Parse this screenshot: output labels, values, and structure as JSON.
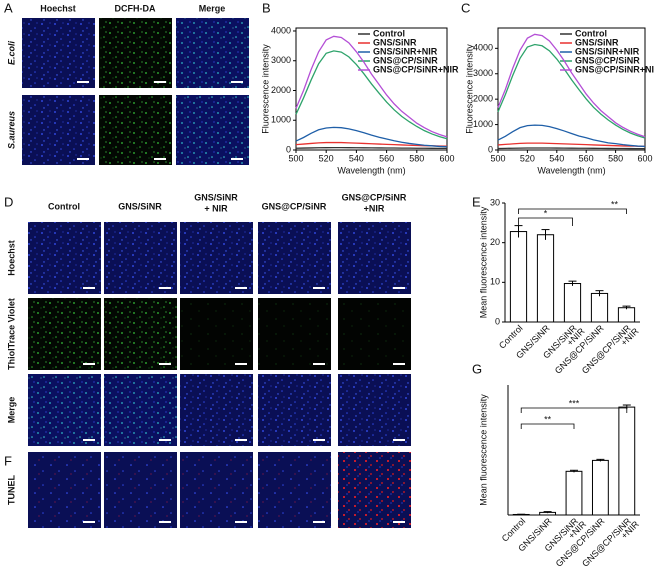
{
  "panel_labels": [
    "A",
    "B",
    "C",
    "D",
    "E",
    "F",
    "G"
  ],
  "panel_a": {
    "columns": [
      "Hoechst",
      "DCFH-DA",
      "Merge"
    ],
    "rows": [
      "E.coli",
      "S.aureus"
    ]
  },
  "panel_d": {
    "columns": [
      {
        "text": "Control"
      },
      {
        "text": "GNS/SiNR"
      },
      {
        "text": "GNS/SiNR",
        "suffix": "+ NIR"
      },
      {
        "text": "GNS@CP/SiNR"
      },
      {
        "text": "GNS@CP/SiNR",
        "suffix": "+NIR"
      }
    ],
    "rows": [
      "Hoechst",
      "ThiolTrace Violet",
      "Merge"
    ]
  },
  "panel_f": {
    "row": "TUNEL"
  },
  "chart_data": [
    {
      "type": "line",
      "xlabel": "Wavelength (nm)",
      "ylabel": "Fluorescence intensity",
      "x": [
        500,
        505,
        510,
        515,
        520,
        525,
        530,
        535,
        540,
        545,
        550,
        555,
        560,
        565,
        570,
        575,
        580,
        585,
        590,
        595,
        600
      ],
      "xlim": [
        500,
        600
      ],
      "xticks": [
        500,
        520,
        540,
        560,
        580,
        600
      ],
      "ylim": [
        0,
        4100
      ],
      "yticks": [
        0,
        1000,
        2000,
        3000,
        4000
      ],
      "series": [
        {
          "name": "Control",
          "color": "#333333",
          "values": [
            60,
            65,
            70,
            75,
            78,
            80,
            80,
            78,
            76,
            74,
            72,
            70,
            68,
            66,
            64,
            62,
            60,
            58,
            56,
            55,
            54
          ]
        },
        {
          "name": "GNS/SiNR",
          "color": "#e8312f",
          "values": [
            180,
            200,
            220,
            240,
            250,
            250,
            250,
            240,
            230,
            220,
            210,
            200,
            190,
            180,
            170,
            160,
            150,
            145,
            140,
            135,
            130
          ]
        },
        {
          "name": "GNS/SiNR+NIR",
          "color": "#1f5fa8",
          "values": [
            300,
            420,
            560,
            680,
            740,
            760,
            750,
            710,
            650,
            580,
            500,
            430,
            370,
            310,
            260,
            220,
            190,
            160,
            140,
            120,
            110
          ]
        },
        {
          "name": "GNS@CP/SiNR",
          "color": "#2ea36b",
          "values": [
            1200,
            1750,
            2350,
            2900,
            3250,
            3330,
            3290,
            3130,
            2870,
            2560,
            2220,
            1910,
            1610,
            1350,
            1130,
            950,
            790,
            650,
            540,
            450,
            380
          ]
        },
        {
          "name": "GNS@CP/SiNR+NIR",
          "color": "#b44fd6",
          "values": [
            1400,
            2000,
            2700,
            3300,
            3700,
            3820,
            3780,
            3600,
            3300,
            2950,
            2550,
            2200,
            1850,
            1550,
            1300,
            1100,
            900,
            750,
            620,
            520,
            440
          ]
        }
      ]
    },
    {
      "type": "line",
      "xlabel": "Wavelength (nm)",
      "ylabel": "Fluorescence intensity",
      "x": [
        500,
        505,
        510,
        515,
        520,
        525,
        530,
        535,
        540,
        545,
        550,
        555,
        560,
        565,
        570,
        575,
        580,
        585,
        590,
        595,
        600
      ],
      "xlim": [
        500,
        600
      ],
      "xticks": [
        500,
        520,
        540,
        560,
        580,
        600
      ],
      "ylim": [
        0,
        4800
      ],
      "yticks": [
        0,
        1000,
        2000,
        3000,
        4000
      ],
      "series": [
        {
          "name": "Control",
          "color": "#333333",
          "values": [
            60,
            65,
            70,
            75,
            78,
            80,
            80,
            78,
            76,
            74,
            72,
            70,
            68,
            66,
            64,
            62,
            60,
            58,
            56,
            55,
            54
          ]
        },
        {
          "name": "GNS/SiNR",
          "color": "#e8312f",
          "values": [
            200,
            220,
            240,
            260,
            270,
            270,
            270,
            260,
            250,
            240,
            230,
            220,
            210,
            200,
            190,
            180,
            170,
            160,
            155,
            150,
            145
          ]
        },
        {
          "name": "GNS/SiNR+NIR",
          "color": "#1f5fa8",
          "values": [
            390,
            540,
            720,
            880,
            960,
            980,
            970,
            920,
            840,
            750,
            650,
            550,
            480,
            400,
            340,
            280,
            250,
            210,
            180,
            155,
            140
          ]
        },
        {
          "name": "GNS@CP/SiNR",
          "color": "#2ea36b",
          "values": [
            1500,
            2180,
            2930,
            3610,
            4050,
            4150,
            4100,
            3900,
            3580,
            3190,
            2770,
            2380,
            2010,
            1680,
            1410,
            1180,
            980,
            810,
            670,
            560,
            470
          ]
        },
        {
          "name": "GNS@CP/SiNR+NIR",
          "color": "#b44fd6",
          "values": [
            1670,
            2380,
            3210,
            3930,
            4400,
            4550,
            4500,
            4290,
            3930,
            3510,
            3040,
            2620,
            2200,
            1850,
            1550,
            1310,
            1070,
            890,
            740,
            620,
            520
          ]
        }
      ]
    },
    {
      "type": "bar",
      "ylabel": "Mean fluorescence intensity",
      "categories": [
        "Control",
        "GNS/SiNR",
        "GNS/SiNR",
        "GNS@CP/SiNR",
        "GNS@CP/SiNR"
      ],
      "category_suffixes": [
        null,
        null,
        "+NIR",
        null,
        "+NIR"
      ],
      "values": [
        22.8,
        22,
        9.7,
        7.2,
        3.6
      ],
      "errors": [
        1.5,
        1.3,
        0.6,
        0.7,
        0.4
      ],
      "ylim": [
        0,
        30
      ],
      "yticks": [
        0,
        10,
        20,
        30
      ],
      "annotations": [
        "*",
        "**"
      ]
    },
    {
      "type": "bar",
      "ylabel": "Mean fluorescence intensity",
      "categories": [
        "Control",
        "GNS/SiNR",
        "GNS/SiNR",
        "GNS@CP/SiNR",
        "GNS@CP/SiNR"
      ],
      "category_suffixes": [
        null,
        null,
        "+NIR",
        null,
        "+NIR"
      ],
      "values": [
        0.2,
        1,
        16.8,
        21,
        41.5
      ],
      "errors": [
        0.1,
        0.3,
        0.4,
        0.4,
        0.8
      ],
      "ylim": [
        0,
        50
      ],
      "annotations": [
        "**",
        "***"
      ]
    }
  ]
}
